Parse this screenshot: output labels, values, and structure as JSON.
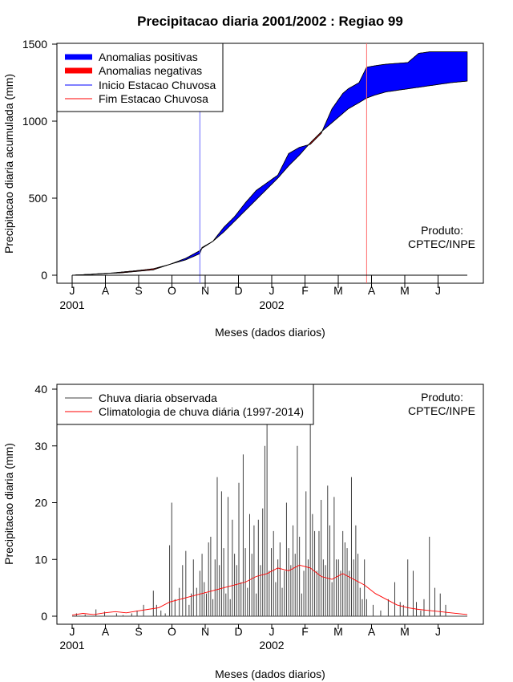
{
  "chart_data": [
    {
      "type": "area",
      "title": "Precipitacao diaria 2001/2002 : Regiao 99",
      "xlabel": "Meses (dados diarios)",
      "ylabel": "Precipitacao diaria acumulada (mm)",
      "ylim": [
        0,
        1500
      ],
      "yticks": [
        "0",
        "500",
        "1000",
        "1500"
      ],
      "month_ticks": [
        "J",
        "A",
        "S",
        "O",
        "N",
        "D",
        "J",
        "F",
        "M",
        "A",
        "M",
        "J"
      ],
      "year_labels": [
        "2001",
        "2002"
      ],
      "product_label": [
        "Produto:",
        "CPTEC/INPE"
      ],
      "legend": {
        "position": "top-left",
        "entries": [
          {
            "label": "Anomalias positivas",
            "color": "#0000ff",
            "style": "thick"
          },
          {
            "label": "Anomalias negativas",
            "color": "#ff0000",
            "style": "thick"
          },
          {
            "label": "Inicio Estacao Chuvosa",
            "color": "#0000ff",
            "style": "thin"
          },
          {
            "label": "Fim Estacao Chuvosa",
            "color": "#ff0000",
            "style": "thin"
          }
        ]
      },
      "rainy_season_start_day": 118,
      "rainy_season_end_day": 272,
      "days": [
        0,
        15,
        30,
        45,
        60,
        75,
        90,
        105,
        118,
        120,
        130,
        140,
        150,
        160,
        170,
        180,
        190,
        200,
        210,
        220,
        230,
        240,
        250,
        255,
        265,
        272,
        280,
        290,
        300,
        310,
        320,
        330,
        340,
        350,
        365
      ],
      "observed_cumulative": [
        0,
        5,
        12,
        15,
        25,
        35,
        70,
        110,
        160,
        175,
        220,
        310,
        380,
        470,
        550,
        600,
        650,
        790,
        830,
        850,
        920,
        1080,
        1180,
        1210,
        1250,
        1350,
        1360,
        1370,
        1375,
        1380,
        1440,
        1450,
        1450,
        1450,
        1450
      ],
      "climatology_cumulative": [
        0,
        5,
        10,
        20,
        30,
        42,
        70,
        100,
        140,
        180,
        220,
        280,
        350,
        420,
        490,
        560,
        630,
        710,
        780,
        860,
        930,
        990,
        1050,
        1080,
        1120,
        1150,
        1170,
        1190,
        1200,
        1210,
        1220,
        1230,
        1240,
        1250,
        1260
      ]
    },
    {
      "type": "bar",
      "xlabel": "Meses (dados diarios)",
      "ylabel": "Precipitacao diaria (mm)",
      "ylim": [
        0,
        40
      ],
      "yticks": [
        "0",
        "10",
        "20",
        "30",
        "40"
      ],
      "month_ticks": [
        "J",
        "A",
        "S",
        "O",
        "N",
        "D",
        "J",
        "F",
        "M",
        "A",
        "M",
        "J"
      ],
      "year_labels": [
        "2001",
        "2002"
      ],
      "product_label": [
        "Produto:",
        "CPTEC/INPE"
      ],
      "legend": {
        "position": "top-left",
        "entries": [
          {
            "label": "Chuva diaria observada",
            "color": "#404040"
          },
          {
            "label": "Climatologia de chuva diária (1997-2014)",
            "color": "#ff0000"
          }
        ]
      },
      "observed_daily_days": [
        4,
        12,
        22,
        30,
        41,
        47,
        55,
        60,
        66,
        75,
        78,
        82,
        86,
        90,
        92,
        95,
        99,
        102,
        105,
        108,
        110,
        112,
        115,
        118,
        120,
        122,
        124,
        126,
        128,
        130,
        132,
        134,
        136,
        138,
        140,
        142,
        144,
        146,
        148,
        150,
        152,
        154,
        156,
        158,
        160,
        162,
        164,
        166,
        168,
        170,
        172,
        174,
        176,
        178,
        180,
        182,
        184,
        186,
        188,
        190,
        192,
        194,
        196,
        198,
        200,
        202,
        204,
        206,
        208,
        210,
        212,
        214,
        216,
        218,
        220,
        222,
        224,
        226,
        228,
        230,
        232,
        234,
        236,
        238,
        240,
        242,
        244,
        246,
        248,
        250,
        252,
        254,
        256,
        258,
        260,
        262,
        264,
        266,
        268,
        270,
        272,
        278,
        285,
        292,
        298,
        303,
        306,
        310,
        315,
        318,
        322,
        325,
        330,
        335,
        340,
        345
      ],
      "observed_daily_values": [
        0.5,
        0.3,
        1.2,
        0.8,
        0.5,
        0.2,
        0.5,
        1,
        2,
        4.5,
        2,
        1,
        0.5,
        12.5,
        20,
        3,
        5,
        9,
        11.5,
        2,
        4,
        10,
        5,
        8,
        11,
        6,
        4,
        13,
        14,
        3,
        10,
        24.5,
        9,
        22,
        12,
        4,
        21,
        3,
        17,
        11,
        9,
        23.5,
        6,
        28.5,
        12,
        5,
        18,
        11,
        16,
        4,
        17,
        9,
        19,
        30,
        39,
        8,
        12,
        15,
        6,
        10,
        13,
        5,
        8,
        20,
        12,
        9,
        16,
        11,
        30,
        14,
        4,
        8,
        22,
        10,
        35,
        18,
        15,
        8,
        15,
        20.5,
        10,
        9,
        23,
        16,
        6,
        21,
        10,
        10,
        8,
        15,
        13,
        12,
        8,
        24.5,
        10,
        16,
        11,
        5,
        3,
        10,
        3,
        2,
        1,
        3,
        6,
        2.5,
        2,
        10,
        8,
        2.5,
        1,
        3,
        14,
        5,
        4,
        2
      ],
      "climatology_days": [
        0,
        10,
        20,
        30,
        40,
        50,
        60,
        70,
        80,
        90,
        100,
        110,
        120,
        130,
        140,
        150,
        160,
        170,
        180,
        190,
        200,
        210,
        220,
        230,
        240,
        250,
        260,
        270,
        280,
        290,
        300,
        310,
        320,
        330,
        340,
        350,
        365
      ],
      "climatology_values": [
        0.2,
        0.5,
        0.3,
        0.6,
        0.8,
        0.6,
        0.9,
        1.2,
        1.5,
        2.5,
        3.0,
        3.5,
        4.0,
        4.5,
        5.0,
        5.5,
        6.0,
        7.0,
        7.5,
        8.5,
        8.0,
        9.0,
        8.5,
        7.0,
        6.5,
        7.5,
        6.5,
        5.5,
        4.0,
        3.0,
        2.0,
        1.5,
        1.2,
        1.0,
        0.8,
        0.6,
        0.3
      ]
    }
  ]
}
